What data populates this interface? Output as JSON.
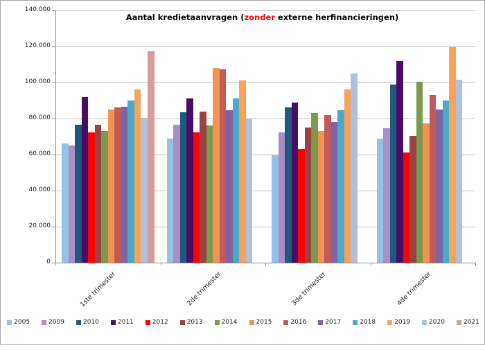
{
  "title": {
    "prefix": "Aantal kredietaanvragen (",
    "highlight": "zonder",
    "suffix": " externe herfinancieringen)",
    "highlight_color": "#ff0000"
  },
  "chart_data": {
    "type": "bar",
    "title": "Aantal kredietaanvragen (zonder externe herfinancieringen)",
    "categories": [
      "1ste trimester",
      "2de trimester",
      "3de trimester",
      "4de trimester"
    ],
    "series": [
      {
        "name": "2005",
        "color": "#95c3e6",
        "values": [
          66000,
          69000,
          59500,
          69000
        ]
      },
      {
        "name": "2009",
        "color": "#ac8dc8",
        "values": [
          65000,
          76500,
          72500,
          74500
        ]
      },
      {
        "name": "2010",
        "color": "#1d5a7e",
        "values": [
          76500,
          83500,
          86000,
          99000
        ]
      },
      {
        "name": "2011",
        "color": "#4a0d67",
        "values": [
          92000,
          91000,
          89000,
          112000
        ]
      },
      {
        "name": "2012",
        "color": "#fe0000",
        "values": [
          72500,
          72500,
          63000,
          61000
        ]
      },
      {
        "name": "2013",
        "color": "#9c4244",
        "values": [
          76500,
          84000,
          75000,
          70500
        ]
      },
      {
        "name": "2014",
        "color": "#7a9a4e",
        "values": [
          73000,
          76000,
          83000,
          100500
        ]
      },
      {
        "name": "2015",
        "color": "#f39352",
        "values": [
          85000,
          108000,
          73000,
          77500
        ]
      },
      {
        "name": "2016",
        "color": "#c25b56",
        "values": [
          86000,
          107500,
          82000,
          93000
        ]
      },
      {
        "name": "2017",
        "color": "#7d64a5",
        "values": [
          86500,
          84500,
          78000,
          85000
        ]
      },
      {
        "name": "2018",
        "color": "#4aaac8",
        "values": [
          90000,
          91000,
          84500,
          90000
        ]
      },
      {
        "name": "2019",
        "color": "#f9a25a",
        "values": [
          96000,
          101000,
          96000,
          119500
        ]
      },
      {
        "name": "2020",
        "color": "#aec1de",
        "values": [
          80500,
          80000,
          105000,
          101500
        ]
      },
      {
        "name": "2021",
        "color": "#d79b9b",
        "values": [
          117500,
          null,
          null,
          null
        ]
      }
    ],
    "xlabel": "",
    "ylabel": "",
    "ylim": [
      0,
      140000
    ],
    "y_tick_labels": [
      "140.000",
      "120.000",
      "100.000",
      "80.000",
      "60.000",
      "40.000",
      "20.000",
      "0"
    ],
    "y_tick_values": [
      140000,
      120000,
      100000,
      80000,
      60000,
      40000,
      20000,
      0
    ],
    "grid": true,
    "legend_position": "bottom"
  }
}
